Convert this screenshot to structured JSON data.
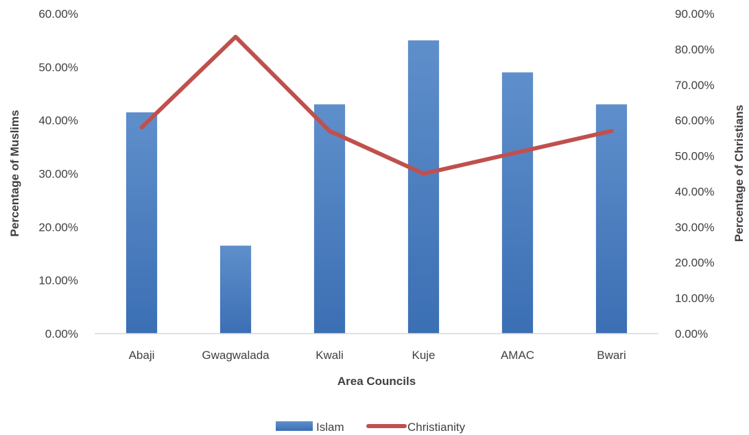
{
  "chart_data": {
    "type": "bar",
    "categories": [
      "Abaji",
      "Gwagwalada",
      "Kwali",
      "Kuje",
      "AMAC",
      "Bwari"
    ],
    "series": [
      {
        "name": "Islam",
        "type": "bar",
        "axis": "left",
        "values": [
          0.415,
          0.165,
          0.43,
          0.55,
          0.49,
          0.43
        ],
        "color": "#4a7ebb"
      },
      {
        "name": "Christianity",
        "type": "line",
        "axis": "right",
        "values": [
          0.58,
          0.835,
          0.57,
          0.45,
          0.51,
          0.57
        ],
        "color": "#c0504d"
      }
    ],
    "xlabel": "Area Councils",
    "ylabel": "Percentage of Muslims",
    "y2label": "Percentage of Christians",
    "ylim": [
      0,
      0.6
    ],
    "y2lim": [
      0,
      0.9
    ],
    "yticks": [
      "0.00%",
      "10.00%",
      "20.00%",
      "30.00%",
      "40.00%",
      "50.00%",
      "60.00%"
    ],
    "y2ticks": [
      "0.00%",
      "10.00%",
      "20.00%",
      "30.00%",
      "40.00%",
      "50.00%",
      "60.00%",
      "70.00%",
      "80.00%",
      "90.00%"
    ],
    "grid": false,
    "legend_position": "bottom"
  }
}
